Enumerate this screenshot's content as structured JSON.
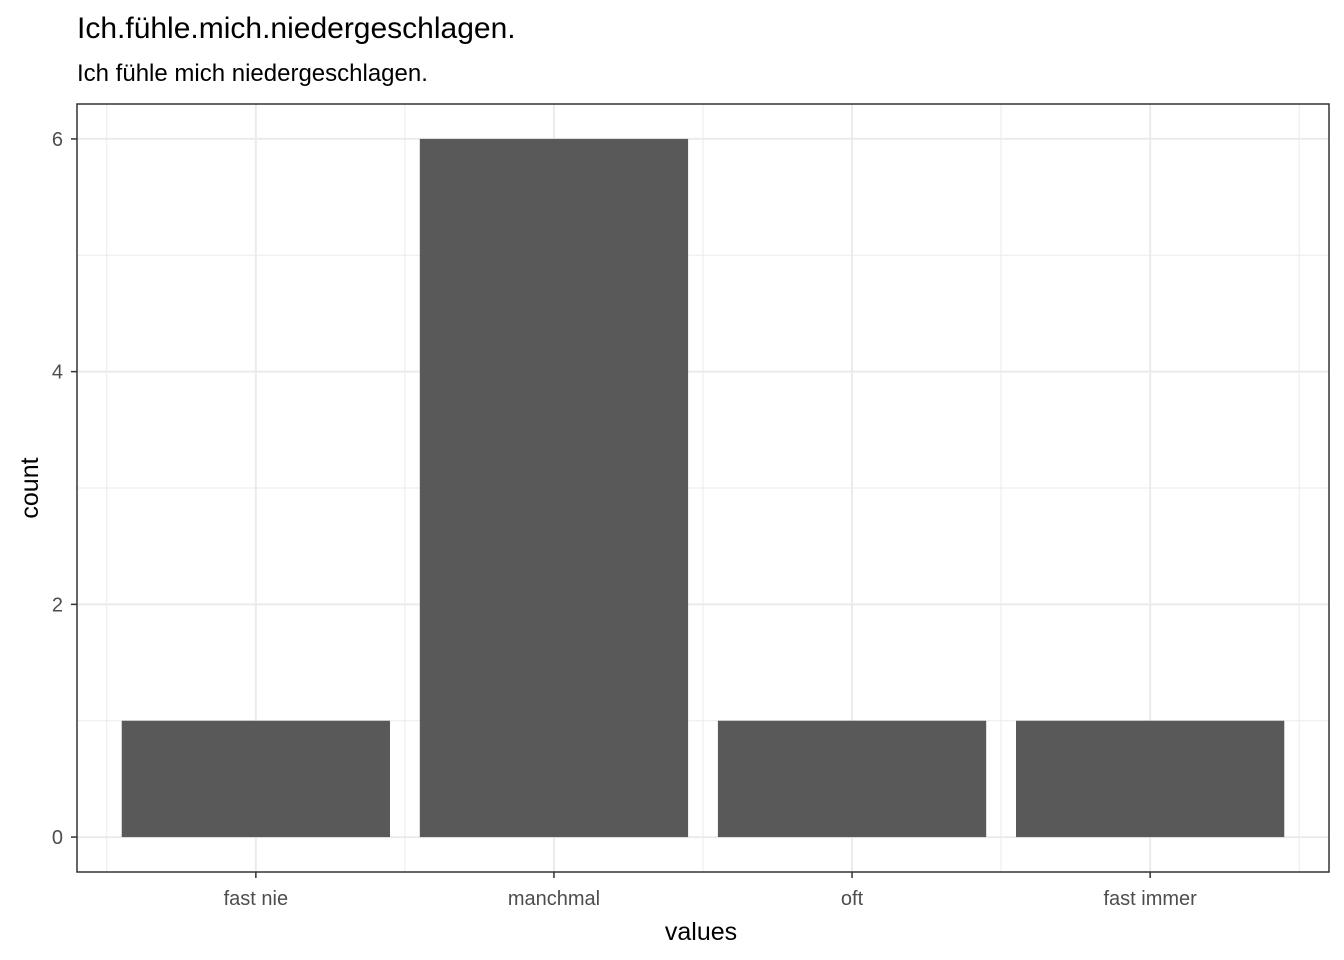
{
  "title": "Ich.fühle.mich.niedergeschlagen.",
  "subtitle": "Ich fühle mich niedergeschlagen.",
  "chart_data": {
    "type": "bar",
    "title": "Ich.fühle.mich.niedergeschlagen.",
    "subtitle": "Ich fühle mich niedergeschlagen.",
    "categories": [
      "fast nie",
      "manchmal",
      "oft",
      "fast immer"
    ],
    "values": [
      1,
      6,
      1,
      1
    ],
    "xlabel": "values",
    "ylabel": "count",
    "ylim": [
      -0.3,
      6.3
    ],
    "yticks": [
      0,
      2,
      4,
      6
    ],
    "grid": true,
    "bar_color": "#595959",
    "grid_color": "#ebebeb"
  }
}
